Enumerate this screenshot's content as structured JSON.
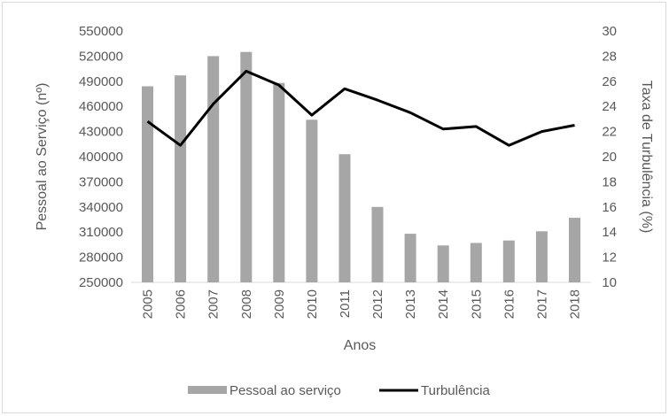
{
  "chart_data": {
    "type": "bar",
    "categories": [
      "2005",
      "2006",
      "2007",
      "2008",
      "2009",
      "2010",
      "2011",
      "2012",
      "2013",
      "2014",
      "2015",
      "2016",
      "2017",
      "2018"
    ],
    "series": [
      {
        "name": "Pessoal ao serviço",
        "type": "bar",
        "axis": "left",
        "color": "#a6a6a6",
        "values": [
          484000,
          497000,
          520000,
          525000,
          488000,
          444000,
          403000,
          340000,
          308000,
          294000,
          297000,
          300000,
          311000,
          327000
        ]
      },
      {
        "name": "Turbulência",
        "type": "line",
        "axis": "right",
        "color": "#000000",
        "values": [
          22.8,
          20.9,
          24.2,
          26.8,
          25.7,
          23.3,
          25.4,
          24.5,
          23.5,
          22.2,
          22.4,
          20.9,
          22.0,
          22.5
        ]
      }
    ],
    "xlabel": "Anos",
    "ylabel": "Pessoal ao Serviço (nº)",
    "y2label": "Taxa de Turbulência (%)",
    "ylim": [
      250000,
      550000
    ],
    "y2lim": [
      10,
      30
    ],
    "yticks": [
      250000,
      280000,
      310000,
      340000,
      370000,
      400000,
      430000,
      460000,
      490000,
      520000,
      550000
    ],
    "y2ticks": [
      10,
      12,
      14,
      16,
      18,
      20,
      22,
      24,
      26,
      28,
      30
    ],
    "grid": false,
    "legend": "bottom"
  }
}
